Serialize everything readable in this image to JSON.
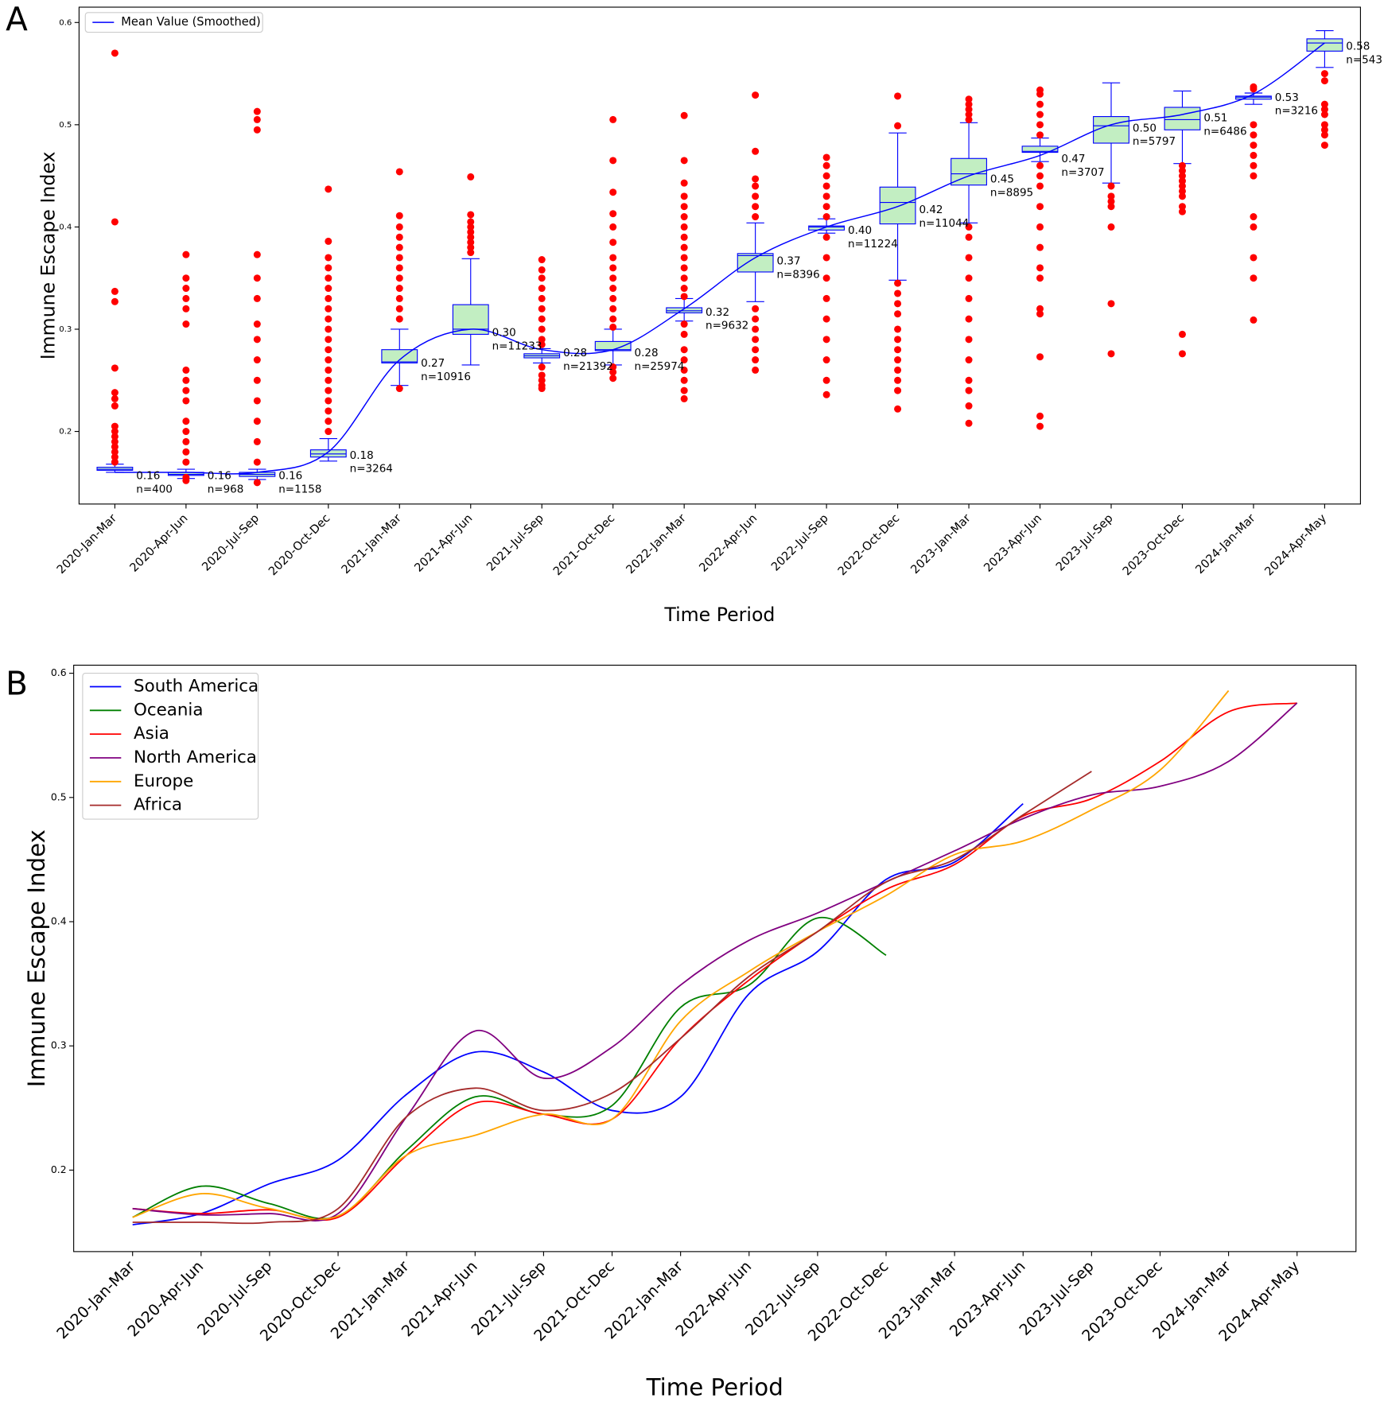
{
  "chart_data": [
    {
      "type": "box",
      "panel": "A",
      "xlabel": "Time Period",
      "ylabel": "Immune Escape Index",
      "legend_label": "Mean Value (Smoothed)",
      "legend": "upper left",
      "categories": [
        "2020-Jan-Mar",
        "2020-Apr-Jun",
        "2020-Jul-Sep",
        "2020-Oct-Dec",
        "2021-Jan-Mar",
        "2021-Apr-Jun",
        "2021-Jul-Sep",
        "2021-Oct-Dec",
        "2022-Jan-Mar",
        "2022-Apr-Jun",
        "2022-Jul-Sep",
        "2022-Oct-Dec",
        "2023-Jan-Mar",
        "2023-Apr-Jun",
        "2023-Jul-Sep",
        "2023-Oct-Dec",
        "2024-Jan-Mar",
        "2024-Apr-May"
      ],
      "xlim": [
        -0.503,
        17.503
      ],
      "ylim": [
        0.129,
        0.615
      ],
      "yticks": [
        0.2,
        0.3,
        0.4,
        0.5,
        0.6
      ],
      "box_color": "#c2eec2",
      "edge_color": "#0000ff",
      "outlier_color": "#ff0000",
      "mean_color": "#0000ff",
      "boxes": [
        {
          "q1": 0.162,
          "median": 0.163,
          "q3": 0.165,
          "whisker_low": 0.16,
          "whisker_high": 0.168,
          "outliers": [
            0.57,
            0.405,
            0.337,
            0.327,
            0.262,
            0.238,
            0.232,
            0.225,
            0.205,
            0.2,
            0.195,
            0.19,
            0.185,
            0.18,
            0.175,
            0.17
          ]
        },
        {
          "q1": 0.157,
          "median": 0.158,
          "q3": 0.16,
          "whisker_low": 0.154,
          "whisker_high": 0.163,
          "outliers": [
            0.373,
            0.35,
            0.34,
            0.33,
            0.32,
            0.305,
            0.26,
            0.25,
            0.24,
            0.23,
            0.21,
            0.2,
            0.19,
            0.18,
            0.17,
            0.155,
            0.152
          ]
        },
        {
          "q1": 0.156,
          "median": 0.158,
          "q3": 0.16,
          "whisker_low": 0.153,
          "whisker_high": 0.163,
          "outliers": [
            0.513,
            0.505,
            0.495,
            0.373,
            0.35,
            0.33,
            0.305,
            0.29,
            0.27,
            0.25,
            0.23,
            0.21,
            0.19,
            0.17,
            0.15
          ]
        },
        {
          "q1": 0.175,
          "median": 0.178,
          "q3": 0.182,
          "whisker_low": 0.171,
          "whisker_high": 0.193,
          "outliers": [
            0.437,
            0.386,
            0.37,
            0.36,
            0.35,
            0.34,
            0.33,
            0.32,
            0.31,
            0.3,
            0.29,
            0.28,
            0.27,
            0.26,
            0.25,
            0.24,
            0.23,
            0.22,
            0.21,
            0.2
          ]
        },
        {
          "q1": 0.267,
          "median": 0.268,
          "q3": 0.28,
          "whisker_low": 0.245,
          "whisker_high": 0.3,
          "outliers": [
            0.454,
            0.411,
            0.4,
            0.39,
            0.38,
            0.37,
            0.36,
            0.35,
            0.34,
            0.33,
            0.32,
            0.31,
            0.242
          ]
        },
        {
          "q1": 0.295,
          "median": 0.3,
          "q3": 0.324,
          "whisker_low": 0.265,
          "whisker_high": 0.369,
          "outliers": [
            0.449,
            0.412,
            0.405,
            0.4,
            0.395,
            0.39,
            0.385,
            0.38,
            0.375
          ]
        },
        {
          "q1": 0.272,
          "median": 0.274,
          "q3": 0.276,
          "whisker_low": 0.267,
          "whisker_high": 0.281,
          "outliers": [
            0.368,
            0.358,
            0.35,
            0.34,
            0.33,
            0.32,
            0.31,
            0.3,
            0.29,
            0.285,
            0.263,
            0.255,
            0.25,
            0.245,
            0.242
          ]
        },
        {
          "q1": 0.279,
          "median": 0.28,
          "q3": 0.288,
          "whisker_low": 0.265,
          "whisker_high": 0.3,
          "outliers": [
            0.505,
            0.465,
            0.434,
            0.413,
            0.4,
            0.385,
            0.37,
            0.36,
            0.35,
            0.34,
            0.33,
            0.32,
            0.31,
            0.302,
            0.263,
            0.258,
            0.252
          ]
        },
        {
          "q1": 0.316,
          "median": 0.318,
          "q3": 0.321,
          "whisker_low": 0.308,
          "whisker_high": 0.33,
          "outliers": [
            0.509,
            0.465,
            0.443,
            0.43,
            0.42,
            0.41,
            0.4,
            0.39,
            0.38,
            0.37,
            0.36,
            0.35,
            0.34,
            0.332,
            0.305,
            0.295,
            0.28,
            0.27,
            0.26,
            0.25,
            0.24,
            0.232
          ]
        },
        {
          "q1": 0.356,
          "median": 0.372,
          "q3": 0.374,
          "whisker_low": 0.327,
          "whisker_high": 0.404,
          "outliers": [
            0.529,
            0.474,
            0.447,
            0.44,
            0.43,
            0.42,
            0.41,
            0.32,
            0.31,
            0.3,
            0.29,
            0.28,
            0.27,
            0.26
          ]
        },
        {
          "q1": 0.397,
          "median": 0.4,
          "q3": 0.401,
          "whisker_low": 0.394,
          "whisker_high": 0.408,
          "outliers": [
            0.468,
            0.46,
            0.45,
            0.44,
            0.43,
            0.42,
            0.41,
            0.39,
            0.37,
            0.35,
            0.33,
            0.31,
            0.29,
            0.27,
            0.25,
            0.236
          ]
        },
        {
          "q1": 0.403,
          "median": 0.424,
          "q3": 0.439,
          "whisker_low": 0.348,
          "whisker_high": 0.492,
          "outliers": [
            0.528,
            0.499,
            0.345,
            0.335,
            0.325,
            0.315,
            0.3,
            0.29,
            0.28,
            0.27,
            0.26,
            0.25,
            0.24,
            0.222
          ]
        },
        {
          "q1": 0.441,
          "median": 0.452,
          "q3": 0.467,
          "whisker_low": 0.404,
          "whisker_high": 0.502,
          "outliers": [
            0.525,
            0.52,
            0.515,
            0.51,
            0.505,
            0.4,
            0.39,
            0.37,
            0.35,
            0.33,
            0.31,
            0.29,
            0.27,
            0.25,
            0.24,
            0.225,
            0.208
          ]
        },
        {
          "q1": 0.473,
          "median": 0.474,
          "q3": 0.479,
          "whisker_low": 0.464,
          "whisker_high": 0.487,
          "outliers": [
            0.534,
            0.53,
            0.52,
            0.51,
            0.5,
            0.49,
            0.46,
            0.45,
            0.44,
            0.42,
            0.4,
            0.38,
            0.36,
            0.35,
            0.32,
            0.315,
            0.273,
            0.215,
            0.205
          ]
        },
        {
          "q1": 0.482,
          "median": 0.499,
          "q3": 0.508,
          "whisker_low": 0.443,
          "whisker_high": 0.541,
          "outliers": [
            0.44,
            0.43,
            0.425,
            0.42,
            0.4,
            0.325,
            0.276
          ]
        },
        {
          "q1": 0.495,
          "median": 0.505,
          "q3": 0.517,
          "whisker_low": 0.462,
          "whisker_high": 0.533,
          "outliers": [
            0.46,
            0.455,
            0.45,
            0.445,
            0.44,
            0.435,
            0.43,
            0.42,
            0.415,
            0.295,
            0.276
          ]
        },
        {
          "q1": 0.525,
          "median": 0.527,
          "q3": 0.528,
          "whisker_low": 0.52,
          "whisker_high": 0.531,
          "outliers": [
            0.537,
            0.535,
            0.5,
            0.49,
            0.48,
            0.47,
            0.46,
            0.45,
            0.41,
            0.4,
            0.37,
            0.35,
            0.309
          ]
        },
        {
          "q1": 0.572,
          "median": 0.58,
          "q3": 0.584,
          "whisker_low": 0.556,
          "whisker_high": 0.592,
          "outliers": [
            0.55,
            0.543,
            0.52,
            0.515,
            0.51,
            0.5,
            0.495,
            0.49,
            0.48
          ]
        }
      ],
      "means": [
        0.16,
        0.16,
        0.16,
        0.18,
        0.27,
        0.3,
        0.28,
        0.28,
        0.32,
        0.37,
        0.4,
        0.42,
        0.45,
        0.47,
        0.5,
        0.51,
        0.53,
        0.58
      ],
      "value_labels": [
        "0.16",
        "0.16",
        "0.16",
        "0.18",
        "0.27",
        "0.30",
        "0.28",
        "0.28",
        "0.32",
        "0.37",
        "0.40",
        "0.42",
        "0.45",
        "0.47",
        "0.50",
        "0.51",
        "0.53",
        "0.58"
      ],
      "n_labels": [
        "n=400",
        "n=968",
        "n=1158",
        "n=3264",
        "n=10916",
        "n=11233",
        "n=21392",
        "n=25974",
        "n=9632",
        "n=8396",
        "n=11224",
        "n=11044",
        "n=8895",
        "n=3707",
        "n=5797",
        "n=6486",
        "n=3216",
        "n=543"
      ]
    },
    {
      "type": "line",
      "panel": "B",
      "xlabel": "Time Period",
      "ylabel": "Immune Escape Index",
      "legend": "upper left",
      "categories": [
        "2020-Jan-Mar",
        "2020-Apr-Jun",
        "2020-Jul-Sep",
        "2020-Oct-Dec",
        "2021-Jan-Mar",
        "2021-Apr-Jun",
        "2021-Jul-Sep",
        "2021-Oct-Dec",
        "2022-Jan-Mar",
        "2022-Apr-Jun",
        "2022-Jul-Sep",
        "2022-Oct-Dec",
        "2023-Jan-Mar",
        "2023-Apr-Jun",
        "2023-Jul-Sep",
        "2023-Oct-Dec",
        "2024-Jan-Mar",
        "2024-Apr-May"
      ],
      "xlim": [
        -0.86,
        17.86
      ],
      "ylim": [
        0.1344,
        0.6065
      ],
      "yticks": [
        0.2,
        0.3,
        0.4,
        0.5,
        0.6
      ],
      "series": [
        {
          "name": "South America",
          "color": "#0000ff",
          "values": [
            0.156,
            0.165,
            0.189,
            0.208,
            0.261,
            0.295,
            0.279,
            0.248,
            0.259,
            0.342,
            0.376,
            0.434,
            0.448,
            0.495,
            null,
            null,
            null,
            null
          ]
        },
        {
          "name": "Oceania",
          "color": "#008000",
          "values": [
            0.162,
            0.187,
            0.173,
            0.163,
            0.216,
            0.259,
            0.245,
            0.252,
            0.331,
            0.349,
            0.403,
            0.373,
            null,
            null,
            null,
            null,
            null,
            null
          ]
        },
        {
          "name": "Asia",
          "color": "#ff0000",
          "values": [
            0.169,
            0.165,
            0.168,
            0.162,
            0.212,
            0.254,
            0.245,
            0.241,
            0.306,
            0.353,
            0.392,
            0.426,
            0.446,
            0.485,
            0.499,
            0.529,
            0.569,
            0.576
          ]
        },
        {
          "name": "North America",
          "color": "#800080",
          "values": [
            0.169,
            0.164,
            0.165,
            0.165,
            0.243,
            0.312,
            0.274,
            0.299,
            0.349,
            0.385,
            0.407,
            0.432,
            0.457,
            0.483,
            0.502,
            0.509,
            0.529,
            0.576
          ]
        },
        {
          "name": "Europe",
          "color": "#ffa500",
          "values": [
            0.162,
            0.181,
            0.169,
            0.163,
            0.212,
            0.228,
            0.245,
            0.241,
            0.32,
            0.36,
            0.392,
            0.421,
            0.454,
            0.465,
            0.49,
            0.522,
            0.586,
            null
          ]
        },
        {
          "name": "Africa",
          "color": "#a52a2a",
          "values": [
            0.158,
            0.158,
            0.158,
            0.169,
            0.243,
            0.266,
            0.248,
            0.262,
            0.306,
            0.356,
            0.392,
            0.432,
            0.45,
            0.486,
            0.521,
            null,
            null,
            null
          ]
        }
      ]
    }
  ]
}
